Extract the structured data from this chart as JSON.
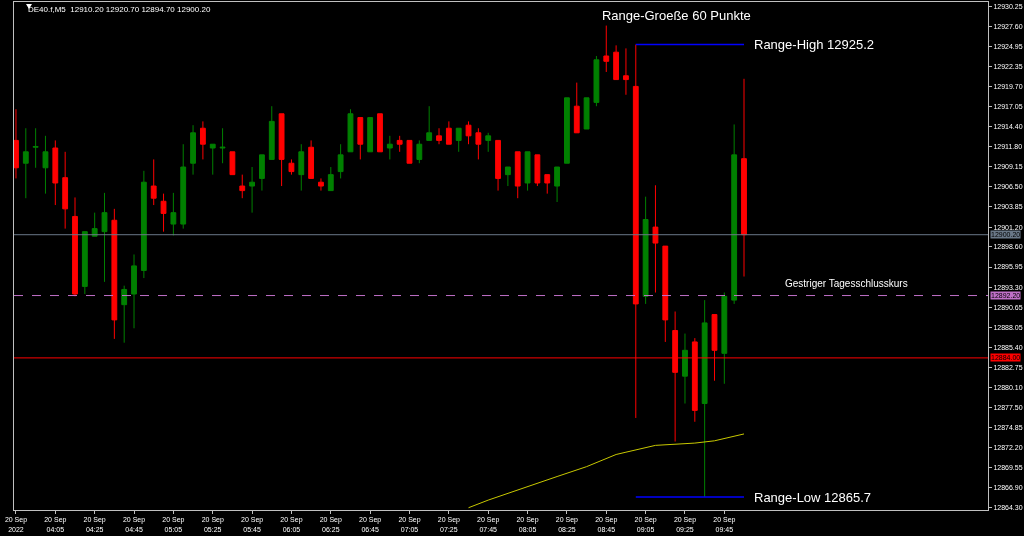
{
  "chart_data": {
    "type": "candlestick",
    "title": "Range-Groeße 60 Punkte",
    "annotations": [
      "DE40.f,M5  12910.20 12920.70 12894.70 12900.20",
      {
        "text": "Gestriger Tagesschlusskurs",
        "x": "2022-09-20T10:15",
        "y": 12892.2
      }
    ],
    "xlim": [
      "2022-09-20T03:44",
      "2022-09-20T11:59"
    ],
    "xticks": [
      {
        "value": "2022-09-20T03:45",
        "label": "20 Sep 2022"
      },
      {
        "value": "2022-09-20T04:05",
        "label": "20 Sep 04:05"
      },
      {
        "value": "2022-09-20T04:25",
        "label": "20 Sep 04:25"
      },
      {
        "value": "2022-09-20T04:45",
        "label": "20 Sep 04:45"
      },
      {
        "value": "2022-09-20T05:05",
        "label": "20 Sep 05:05"
      },
      {
        "value": "2022-09-20T05:25",
        "label": "20 Sep 05:25"
      },
      {
        "value": "2022-09-20T05:45",
        "label": "20 Sep 05:45"
      },
      {
        "value": "2022-09-20T06:05",
        "label": "20 Sep 06:05"
      },
      {
        "value": "2022-09-20T06:25",
        "label": "20 Sep 06:25"
      },
      {
        "value": "2022-09-20T06:45",
        "label": "20 Sep 06:45"
      },
      {
        "value": "2022-09-20T07:05",
        "label": "20 Sep 07:05"
      },
      {
        "value": "2022-09-20T07:25",
        "label": "20 Sep 07:25"
      },
      {
        "value": "2022-09-20T07:45",
        "label": "20 Sep 07:45"
      },
      {
        "value": "2022-09-20T08:05",
        "label": "20 Sep 08:05"
      },
      {
        "value": "2022-09-20T08:25",
        "label": "20 Sep 08:25"
      },
      {
        "value": "2022-09-20T08:45",
        "label": "20 Sep 08:45"
      },
      {
        "value": "2022-09-20T09:05",
        "label": "20 Sep 09:05"
      },
      {
        "value": "2022-09-20T09:25",
        "label": "20 Sep 09:25"
      },
      {
        "value": "2022-09-20T09:45",
        "label": "20 Sep 09:45"
      }
    ],
    "ylim": [
      12864.0,
      12930.8
    ],
    "yticks": [
      12930.25,
      {
        "value": 12927.6,
        "label": "12927.60"
      },
      12924.95,
      12922.35,
      {
        "value": 12919.7,
        "label": "12919.70"
      },
      12917.05,
      {
        "value": 12914.4,
        "label": "12914.40"
      },
      {
        "value": 12911.8,
        "label": "12911.80"
      },
      12909.15,
      {
        "value": 12906.5,
        "label": "12906.50"
      },
      12903.85,
      {
        "value": 12901.2,
        "label": "12901.20"
      },
      {
        "value": 12898.6,
        "label": "12898.60"
      },
      12895.95,
      {
        "value": 12893.3,
        "label": "12893.30"
      },
      12890.65,
      12888.05,
      {
        "value": 12885.4,
        "label": "12885.40"
      },
      12882.75,
      {
        "value": 12880.1,
        "label": "12880.10"
      },
      {
        "value": 12877.5,
        "label": "12877.50"
      },
      12874.85,
      {
        "value": 12872.2,
        "label": "12872.20"
      },
      12869.55,
      {
        "value": 12866.9,
        "label": "12866.90"
      },
      {
        "value": 12864.3,
        "label": "12864.30"
      }
    ],
    "ref_lines": [
      {
        "axis": "y",
        "value": 12900.2,
        "label": "12900.20",
        "color": "#6a7888"
      },
      {
        "axis": "y",
        "value": 12892.2,
        "label": "12892.20",
        "color": "#c070c8",
        "line_style": "dashed"
      },
      {
        "axis": "y",
        "value": 12884.0,
        "label": "12884.00",
        "color": "#ff0000"
      }
    ],
    "series": [
      {
        "type": "candlestick",
        "x": [
          "2022-09-20T03:45",
          "2022-09-20T03:50",
          "2022-09-20T03:55",
          "2022-09-20T04:00",
          "2022-09-20T04:05",
          "2022-09-20T04:10",
          "2022-09-20T04:15",
          "2022-09-20T04:20",
          "2022-09-20T04:25",
          "2022-09-20T04:30",
          "2022-09-20T04:35",
          "2022-09-20T04:40",
          "2022-09-20T04:45",
          "2022-09-20T04:50",
          "2022-09-20T04:55",
          "2022-09-20T05:00",
          "2022-09-20T05:05",
          "2022-09-20T05:10",
          "2022-09-20T05:15",
          "2022-09-20T05:20",
          "2022-09-20T05:25",
          "2022-09-20T05:30",
          "2022-09-20T05:35",
          "2022-09-20T05:40",
          "2022-09-20T05:45",
          "2022-09-20T05:50",
          "2022-09-20T05:55",
          "2022-09-20T06:00",
          "2022-09-20T06:05",
          "2022-09-20T06:10",
          "2022-09-20T06:15",
          "2022-09-20T06:20",
          "2022-09-20T06:25",
          "2022-09-20T06:30",
          "2022-09-20T06:35",
          "2022-09-20T06:40",
          "2022-09-20T06:45",
          "2022-09-20T06:50",
          "2022-09-20T06:55",
          "2022-09-20T07:00",
          "2022-09-20T07:05",
          "2022-09-20T07:10",
          "2022-09-20T07:15",
          "2022-09-20T07:20",
          "2022-09-20T07:25",
          "2022-09-20T07:30",
          "2022-09-20T07:35",
          "2022-09-20T07:40",
          "2022-09-20T07:45",
          "2022-09-20T07:50",
          "2022-09-20T07:55",
          "2022-09-20T08:00",
          "2022-09-20T08:05",
          "2022-09-20T08:10",
          "2022-09-20T08:15",
          "2022-09-20T08:20",
          "2022-09-20T08:25",
          "2022-09-20T08:30",
          "2022-09-20T08:35",
          "2022-09-20T08:40",
          "2022-09-20T08:45",
          "2022-09-20T08:50",
          "2022-09-20T08:55",
          "2022-09-20T09:00",
          "2022-09-20T09:05",
          "2022-09-20T09:10",
          "2022-09-20T09:15",
          "2022-09-20T09:20",
          "2022-09-20T09:25",
          "2022-09-20T09:30",
          "2022-09-20T09:35",
          "2022-09-20T09:40",
          "2022-09-20T09:45",
          "2022-09-20T09:50",
          "2022-09-20T09:55"
        ],
        "ohlc": [
          [
            12912.6,
            12916.7,
            12907.6,
            12909.0
          ],
          [
            12909.6,
            12914.2,
            12905.0,
            12911.1
          ],
          [
            12911.7,
            12914.2,
            12909.0,
            12911.8
          ],
          [
            12909.0,
            12913.2,
            12905.6,
            12911.1
          ],
          [
            12911.6,
            12912.6,
            12904.1,
            12907.0
          ],
          [
            12907.7,
            12911.1,
            12901.0,
            12903.6
          ],
          [
            12902.6,
            12905.1,
            12892.1,
            12892.4
          ],
          [
            12893.4,
            12900.6,
            12892.4,
            12900.6
          ],
          [
            12900.0,
            12903.1,
            12900.0,
            12901.0
          ],
          [
            12900.6,
            12905.7,
            12894.0,
            12903.1
          ],
          [
            12902.1,
            12903.6,
            12886.5,
            12889.0
          ],
          [
            12891.0,
            12893.5,
            12886.0,
            12893.0
          ],
          [
            12892.4,
            12897.6,
            12887.9,
            12896.1
          ],
          [
            12895.5,
            12908.6,
            12894.5,
            12907.1
          ],
          [
            12906.6,
            12910.1,
            12904.1,
            12905.0
          ],
          [
            12904.6,
            12905.6,
            12900.6,
            12903.0
          ],
          [
            12901.6,
            12905.7,
            12900.1,
            12903.1
          ],
          [
            12901.6,
            12912.1,
            12901.0,
            12909.1
          ],
          [
            12909.6,
            12914.6,
            12908.1,
            12913.6
          ],
          [
            12914.2,
            12915.1,
            12910.1,
            12912.1
          ],
          [
            12911.6,
            12912.1,
            12908.1,
            12912.1
          ],
          [
            12911.6,
            12914.2,
            12909.6,
            12911.7
          ],
          [
            12911.1,
            12911.1,
            12908.1,
            12908.1
          ],
          [
            12906.6,
            12908.1,
            12905.0,
            12906.0
          ],
          [
            12906.6,
            12909.1,
            12903.1,
            12907.1
          ],
          [
            12907.6,
            12910.7,
            12906.0,
            12910.7
          ],
          [
            12910.1,
            12917.1,
            12910.1,
            12915.1
          ],
          [
            12916.1,
            12916.1,
            12906.6,
            12910.1
          ],
          [
            12909.6,
            12910.1,
            12908.1,
            12908.5
          ],
          [
            12908.1,
            12912.1,
            12906.0,
            12911.1
          ],
          [
            12911.7,
            12912.6,
            12907.6,
            12907.6
          ],
          [
            12907.1,
            12907.6,
            12906.0,
            12906.6
          ],
          [
            12906.0,
            12909.1,
            12906.0,
            12908.1
          ],
          [
            12908.5,
            12912.1,
            12907.6,
            12910.7
          ],
          [
            12911.1,
            12916.7,
            12911.1,
            12916.1
          ],
          [
            12915.6,
            12915.6,
            12910.1,
            12912.1
          ],
          [
            12911.1,
            12915.6,
            12911.1,
            12915.6
          ],
          [
            12916.1,
            12916.1,
            12911.1,
            12911.1
          ],
          [
            12911.6,
            12913.2,
            12910.1,
            12912.1
          ],
          [
            12912.6,
            12913.2,
            12911.1,
            12912.1
          ],
          [
            12912.6,
            12912.6,
            12909.6,
            12909.6
          ],
          [
            12910.1,
            12912.6,
            12909.6,
            12912.1
          ],
          [
            12912.6,
            12917.1,
            12912.6,
            12913.6
          ],
          [
            12913.2,
            12914.2,
            12912.1,
            12912.6
          ],
          [
            12914.2,
            12915.1,
            12912.1,
            12912.1
          ],
          [
            12912.6,
            12914.2,
            12911.1,
            12914.2
          ],
          [
            12914.6,
            12915.1,
            12912.1,
            12913.2
          ],
          [
            12913.6,
            12914.2,
            12910.1,
            12912.1
          ],
          [
            12912.6,
            12913.6,
            12911.1,
            12913.2
          ],
          [
            12912.6,
            12912.6,
            12906.0,
            12907.6
          ],
          [
            12908.1,
            12909.1,
            12906.6,
            12909.1
          ],
          [
            12911.1,
            12911.1,
            12905.0,
            12906.6
          ],
          [
            12907.0,
            12911.1,
            12906.0,
            12911.1
          ],
          [
            12910.7,
            12910.7,
            12906.6,
            12907.0
          ],
          [
            12908.1,
            12908.1,
            12905.6,
            12907.0
          ],
          [
            12906.6,
            12909.1,
            12904.5,
            12909.1
          ],
          [
            12909.6,
            12918.2,
            12909.6,
            12918.2
          ],
          [
            12917.1,
            12920.2,
            12913.6,
            12913.6
          ],
          [
            12914.1,
            12918.2,
            12914.1,
            12918.2
          ],
          [
            12917.6,
            12923.7,
            12917.1,
            12923.2
          ],
          [
            12923.7,
            12927.7,
            12921.6,
            12923.0
          ],
          [
            12924.2,
            12925.1,
            12920.6,
            12920.6
          ],
          [
            12921.1,
            12924.7,
            12918.6,
            12920.6
          ],
          [
            12919.7,
            12925.2,
            12876.1,
            12891.1
          ],
          [
            12892.1,
            12905.2,
            12891.1,
            12902.2
          ],
          [
            12901.2,
            12906.7,
            12892.6,
            12899.1
          ],
          [
            12898.7,
            12898.7,
            12886.1,
            12889.0
          ],
          [
            12887.6,
            12890.1,
            12873.0,
            12882.1
          ],
          [
            12881.6,
            12887.2,
            12878.0,
            12885.0
          ],
          [
            12886.1,
            12886.6,
            12875.6,
            12877.1
          ],
          [
            12878.0,
            12891.6,
            12865.7,
            12888.6
          ],
          [
            12889.7,
            12889.7,
            12881.0,
            12885.0
          ],
          [
            12884.6,
            12892.6,
            12880.6,
            12892.1
          ],
          [
            12891.6,
            12914.7,
            12891.1,
            12910.7
          ],
          [
            12910.2,
            12920.7,
            12894.7,
            12900.2
          ]
        ],
        "colors": [
          "#ff0000",
          "#008000",
          "#008000",
          "#008000",
          "#ff0000",
          "#ff0000",
          "#ff0000",
          "#008000",
          "#008000",
          "#008000",
          "#ff0000",
          "#008000",
          "#008000",
          "#008000",
          "#ff0000",
          "#ff0000",
          "#008000",
          "#008000",
          "#008000",
          "#ff0000",
          "#008000",
          "#008000",
          "#ff0000",
          "#ff0000",
          "#008000",
          "#008000",
          "#008000",
          "#ff0000",
          "#ff0000",
          "#008000",
          "#ff0000",
          "#ff0000",
          "#008000",
          "#008000",
          "#008000",
          "#ff0000",
          "#008000",
          "#ff0000",
          "#008000",
          "#ff0000",
          "#ff0000",
          "#008000",
          "#008000",
          "#ff0000",
          "#ff0000",
          "#008000",
          "#ff0000",
          "#ff0000",
          "#008000",
          "#ff0000",
          "#008000",
          "#ff0000",
          "#008000",
          "#ff0000",
          "#ff0000",
          "#008000",
          "#008000",
          "#ff0000",
          "#008000",
          "#008000",
          "#ff0000",
          "#ff0000",
          "#ff0000",
          "#ff0000",
          "#008000",
          "#ff0000",
          "#ff0000",
          "#ff0000",
          "#008000",
          "#ff0000",
          "#008000",
          "#ff0000",
          "#008000",
          "#008000",
          "#ff0000"
        ]
      },
      {
        "type": "line",
        "color": "#c8c800",
        "x": [
          "2022-09-20T07:35",
          "2022-09-20T07:45",
          "2022-09-20T08:20",
          "2022-09-20T08:35",
          "2022-09-20T08:50",
          "2022-09-20T08:55",
          "2022-09-20T09:10",
          "2022-09-20T09:30",
          "2022-09-20T09:40",
          "2022-09-20T09:55"
        ],
        "values": [
          12864.3,
          12865.3,
          12868.4,
          12869.7,
          12871.3,
          12871.6,
          12872.5,
          12872.8,
          12873.1,
          12874.0
        ]
      },
      {
        "type": "line",
        "name": "Range-High 12925.2",
        "color": "#0000ff",
        "x": [
          "2022-09-20T09:00",
          "2022-09-20T09:55"
        ],
        "values": [
          12925.2,
          12925.2
        ]
      },
      {
        "type": "line",
        "name": "Range-Low 12865.7",
        "color": "#0000ff",
        "x": [
          "2022-09-20T09:00",
          "2022-09-20T09:55"
        ],
        "values": [
          12865.7,
          12865.7
        ]
      }
    ]
  }
}
